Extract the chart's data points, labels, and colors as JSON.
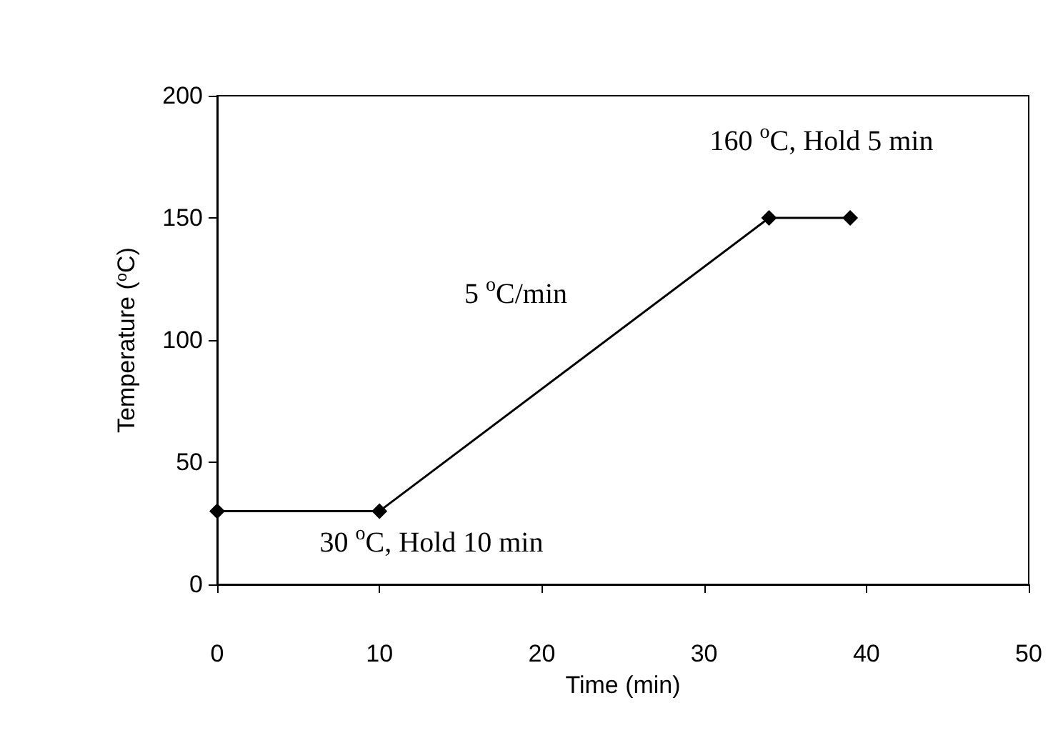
{
  "chart_data": {
    "type": "line",
    "xlabel": "Time (min)",
    "ylabel": "Temperature ($^{o}$C)",
    "x": [
      0,
      10,
      34,
      39
    ],
    "series": [
      {
        "color": "#000000",
        "values": [
          30,
          30,
          150,
          150
        ]
      }
    ],
    "xlim": [
      0,
      50
    ],
    "xticks": [
      0,
      10,
      20,
      30,
      40,
      50
    ],
    "ylim": [
      0,
      200
    ],
    "yticks": [
      0,
      50,
      100,
      150,
      200
    ],
    "grid": false,
    "marker": "diamond",
    "line_style": "solid",
    "annotations": [
      "30 $^{o}$C, Hold 10 min",
      "5 $^{o}$C/min",
      "160 $^{o}$C, Hold 5 min"
    ]
  }
}
